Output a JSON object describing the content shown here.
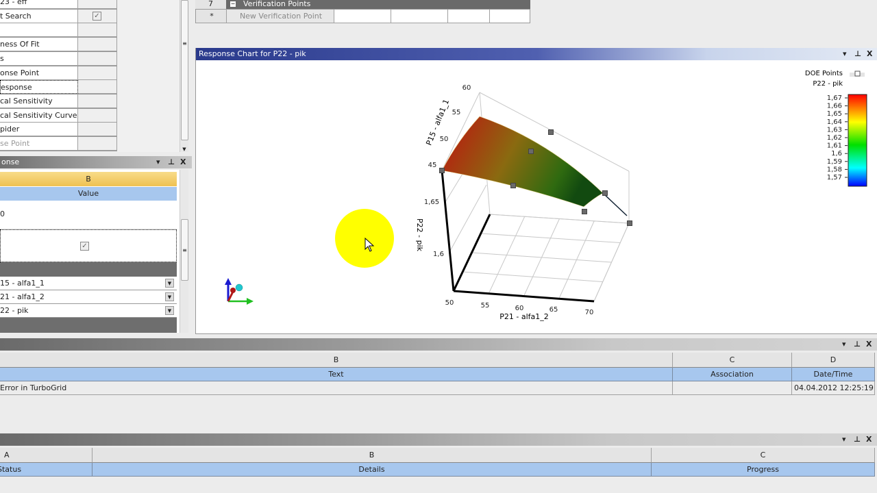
{
  "outline": {
    "rows": [
      {
        "label": "23 - eff",
        "checked": false
      },
      {
        "label": "t Search",
        "checked": true
      },
      {
        "label": ""
      },
      {
        "label": "ness Of Fit"
      },
      {
        "label": "s"
      },
      {
        "label": "onse Point"
      },
      {
        "label": "esponse",
        "selected": true
      },
      {
        "label": "cal Sensitivity"
      },
      {
        "label": "cal Sensitivity Curves"
      },
      {
        "label": "pider"
      },
      {
        "label": "se Point",
        "disabled": true
      }
    ]
  },
  "properties": {
    "title": "onse",
    "col_letter": "B",
    "col_header": "Value",
    "value_row": "0",
    "checked": true,
    "dropdowns": [
      "15 - alfa1_1",
      "21 - alfa1_2",
      "22 - pik"
    ]
  },
  "top_table": {
    "row_num": "7",
    "section": "Verification Points",
    "new_row_marker": "*",
    "new_row_label": "New Verification Point"
  },
  "chart_panel": {
    "title": "Response Chart for P22 - pik"
  },
  "chart_data": {
    "type": "surface3d",
    "x_axis": {
      "label": "P21 - alfa1_2",
      "ticks": [
        "50",
        "55",
        "60",
        "65",
        "70"
      ]
    },
    "y_axis": {
      "label": "P15 - alfa1_1",
      "ticks": [
        "45",
        "50",
        "55",
        "60"
      ]
    },
    "z_axis": {
      "label": "P22 - pik",
      "ticks": [
        "1,6",
        "1,65"
      ]
    },
    "legend": {
      "doe_label": "DOE Points",
      "series_label": "P22 - pik",
      "placement": "top-right",
      "colorbar": [
        "1,67",
        "1,66",
        "1,65",
        "1,64",
        "1,63",
        "1,62",
        "1,61",
        "1,6",
        "1,59",
        "1,58",
        "1,57"
      ],
      "colors": [
        "#ff0000",
        "#ffff00",
        "#00e000",
        "#00ffff",
        "#0000ff"
      ]
    }
  },
  "messages": {
    "letters": [
      "B",
      "C",
      "D"
    ],
    "headers": [
      "Text",
      "Association",
      "Date/Time"
    ],
    "rows": [
      {
        "text": "Error in TurboGrid",
        "association": "",
        "datetime": "04.04.2012 12:25:19"
      }
    ]
  },
  "progress": {
    "letters": [
      "A",
      "B",
      "C"
    ],
    "headers": [
      "Status",
      "Details",
      "Progress"
    ]
  },
  "panel_controls": {
    "dropdown": "▾",
    "pin": "⊥",
    "close": "X"
  }
}
